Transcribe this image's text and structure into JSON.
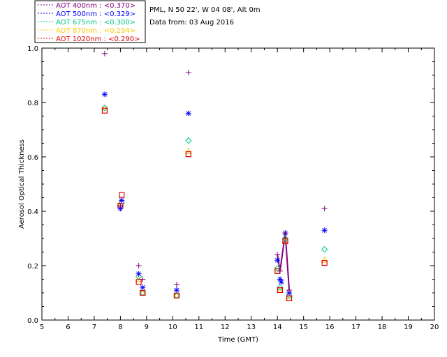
{
  "chart_data": {
    "type": "scatter",
    "header": {
      "site": "PML, N 50 22', W 04 08', Alt 0m",
      "date": "Data from: 03 Aug 2016"
    },
    "xlabel": "Time (GMT)",
    "ylabel": "Aerosol Optical Thickness",
    "xlim": [
      5,
      20
    ],
    "ylim": [
      0.0,
      1.0
    ],
    "xticks": [
      "5",
      "6",
      "7",
      "8",
      "9",
      "10",
      "11",
      "12",
      "13",
      "14",
      "15",
      "16",
      "17",
      "18",
      "19",
      "20"
    ],
    "yticks": [
      "0.0",
      "0.2",
      "0.4",
      "0.6",
      "0.8",
      "1.0"
    ],
    "grid": false,
    "legend_placement": "top-left, above plot",
    "series": [
      {
        "name": "AOT  400nm : <0.370>",
        "color": "#800080",
        "marker": "plus",
        "x": [
          7.4,
          8.0,
          8.7,
          8.85,
          10.15,
          10.6,
          14.0,
          14.1,
          14.3,
          14.45,
          15.8
        ],
        "y": [
          0.98,
          0.42,
          0.2,
          0.15,
          0.13,
          0.91,
          0.24,
          0.18,
          0.32,
          0.11,
          0.41
        ]
      },
      {
        "name": "AOT  500nm : <0.329>",
        "color": "#0000ff",
        "marker": "star",
        "x": [
          7.4,
          8.0,
          8.05,
          8.7,
          8.85,
          10.15,
          10.6,
          14.0,
          14.1,
          14.15,
          14.3,
          14.45,
          15.8
        ],
        "y": [
          0.83,
          0.41,
          0.44,
          0.17,
          0.12,
          0.11,
          0.76,
          0.22,
          0.15,
          0.14,
          0.32,
          0.1,
          0.33
        ]
      },
      {
        "name": "AOT  675nm : <0.300>",
        "color": "#00c88c",
        "marker": "diamond",
        "x": [
          7.4,
          8.05,
          8.7,
          8.85,
          10.15,
          10.6,
          14.0,
          14.1,
          14.3,
          14.45,
          15.8
        ],
        "y": [
          0.78,
          0.43,
          0.16,
          0.1,
          0.09,
          0.66,
          0.19,
          0.12,
          0.3,
          0.09,
          0.26
        ]
      },
      {
        "name": "AOT  870nm : <0.294>",
        "color": "#ffc800",
        "marker": "triangle",
        "x": [
          7.4,
          8.0,
          8.7,
          8.85,
          10.15,
          10.6,
          14.0,
          14.1,
          14.3,
          14.45,
          15.8
        ],
        "y": [
          0.78,
          0.43,
          0.15,
          0.1,
          0.09,
          0.62,
          0.18,
          0.11,
          0.29,
          0.08,
          0.22
        ]
      },
      {
        "name": "AOT 1020nm : <0.290>",
        "color": "#e00000",
        "marker": "square",
        "x": [
          7.4,
          8.0,
          8.05,
          8.7,
          8.85,
          10.15,
          10.6,
          14.0,
          14.1,
          14.3,
          14.45,
          15.8
        ],
        "y": [
          0.77,
          0.42,
          0.46,
          0.14,
          0.1,
          0.09,
          0.61,
          0.18,
          0.11,
          0.29,
          0.08,
          0.21
        ]
      }
    ],
    "connecting_line": {
      "color": "#800080",
      "x": [
        14.0,
        14.1,
        14.3,
        14.45
      ],
      "y": [
        0.24,
        0.18,
        0.32,
        0.11
      ]
    }
  }
}
